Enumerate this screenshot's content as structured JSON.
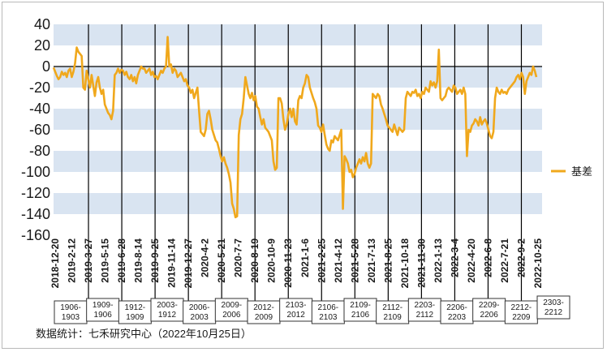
{
  "chart_data": {
    "type": "line",
    "ylim": [
      -160,
      40
    ],
    "yticks": [
      40,
      20,
      0,
      -20,
      -40,
      -60,
      -80,
      -100,
      -120,
      -140,
      -160
    ],
    "ytick_labels": [
      "40",
      "20",
      "0",
      "-20",
      "-40",
      "-60",
      "-80",
      "-100",
      "-120",
      "-140",
      "-160"
    ],
    "grid": "alternating horizontal bands",
    "xtick_labels": [
      "2018-12-20",
      "2019-2-12",
      "2019-3-27",
      "2019-5-15",
      "2019-6-28",
      "2019-8-14",
      "2019-9-25",
      "2019-11-14",
      "2019-12-27",
      "2020-4-2",
      "2020-5-21",
      "2020-7-7",
      "2020-8-19",
      "2020-10-9",
      "2020-11-23",
      "2021-1-6",
      "2021-2-25",
      "2021-4-12",
      "2021-5-28",
      "2021-7-13",
      "2021-8-25",
      "2021-10-18",
      "2021-11-30",
      "2022-1-13",
      "2022-3-4",
      "2022-4-20",
      "2022-6-8",
      "2022-7-21",
      "2022-9-2",
      "2022-10-25"
    ],
    "contract_labels": [
      [
        "1906-",
        "1903"
      ],
      [
        "1909-",
        "1906"
      ],
      [
        "1912-",
        "1909"
      ],
      [
        "2003-",
        "1912"
      ],
      [
        "2006-",
        "2003"
      ],
      [
        "2009-",
        "2006"
      ],
      [
        "2012-",
        "2009"
      ],
      [
        "2103-",
        "2012"
      ],
      [
        "2106-",
        "2103"
      ],
      [
        "2109-",
        "2106"
      ],
      [
        "2112-",
        "2109"
      ],
      [
        "2203-",
        "2112"
      ],
      [
        "2206-",
        "2203"
      ],
      [
        "2209-",
        "2206"
      ],
      [
        "2212-",
        "2209"
      ],
      [
        "2303-",
        "2212"
      ]
    ],
    "series": [
      {
        "name": "基差",
        "color": "#F0A81C",
        "values": [
          -1,
          -5,
          -9,
          -12,
          -10,
          -5,
          -8,
          -6,
          -10,
          -4,
          -2,
          -10,
          -5,
          3,
          18,
          14,
          12,
          10,
          -20,
          -22,
          -4,
          -12,
          -20,
          -8,
          -18,
          -28,
          -15,
          -10,
          -20,
          -26,
          -22,
          -36,
          -40,
          -44,
          -46,
          -50,
          -42,
          -8,
          -6,
          -2,
          -6,
          -3,
          -4,
          -8,
          -5,
          -10,
          -12,
          -8,
          -14,
          -10,
          -16,
          -8,
          -4,
          0,
          -2,
          -2,
          -6,
          -4,
          -2,
          -8,
          -5,
          -10,
          -9,
          -12,
          -8,
          -4,
          -6,
          -2,
          0,
          28,
          0,
          2,
          -6,
          -2,
          -4,
          -10,
          -8,
          -6,
          -10,
          -14,
          -12,
          -18,
          -20,
          -25,
          -22,
          -30,
          -25,
          -20,
          -42,
          -62,
          -64,
          -66,
          -60,
          -45,
          -42,
          -50,
          -60,
          -65,
          -70,
          -72,
          -78,
          -85,
          -90,
          -86,
          -92,
          -96,
          -102,
          -110,
          -130,
          -135,
          -143,
          -142,
          -65,
          -50,
          -45,
          -30,
          -10,
          -18,
          -26,
          -30,
          -25,
          -32,
          -28,
          -38,
          -40,
          -48,
          -55,
          -50,
          -58,
          -60,
          -62,
          -66,
          -70,
          -90,
          -98,
          -96,
          -30,
          -30,
          -35,
          -50,
          -60,
          -55,
          -45,
          -40,
          -48,
          -40,
          -52,
          -55,
          -32,
          -28,
          -30,
          -20,
          -16,
          -8,
          -10,
          -20,
          -25,
          -30,
          -34,
          -40,
          -56,
          -58,
          -62,
          -55,
          -65,
          -74,
          -78,
          -80,
          -70,
          -72,
          -66,
          -68,
          -70,
          -65,
          -60,
          -135,
          -85,
          -88,
          -92,
          -100,
          -98,
          -105,
          -102,
          -96,
          -92,
          -88,
          -92,
          -86,
          -90,
          -82,
          -92,
          -96,
          -92,
          -26,
          -28,
          -30,
          -26,
          -28,
          -36,
          -40,
          -45,
          -50,
          -56,
          -58,
          -60,
          -62,
          -55,
          -60,
          -65,
          -58,
          -60,
          -62,
          -60,
          -30,
          -24,
          -26,
          -28,
          -24,
          -25,
          -22,
          -28,
          -26,
          -30,
          -24,
          -26,
          -20,
          -22,
          -24,
          -14,
          -18,
          -15,
          -20,
          -14,
          16,
          -30,
          -32,
          -30,
          -28,
          -22,
          -20,
          -22,
          -24,
          -18,
          -20,
          -26,
          -24,
          -22,
          -26,
          -20,
          -26,
          -85,
          -60,
          -62,
          -56,
          -54,
          -50,
          -52,
          -56,
          -48,
          -55,
          -52,
          -50,
          -54,
          -60,
          -66,
          -68,
          -62,
          -30,
          -20,
          -24,
          -26,
          -22,
          -25,
          -24,
          -26,
          -22,
          -20,
          -18,
          -16,
          -14,
          -10,
          -8,
          -12,
          -6,
          -10,
          -26,
          -14,
          -10,
          -6,
          -8,
          0,
          -4,
          -10
        ]
      }
    ]
  },
  "legend": {
    "label": "基差"
  },
  "footnote": "数据统计：七禾研究中心（2022年10月25日）"
}
